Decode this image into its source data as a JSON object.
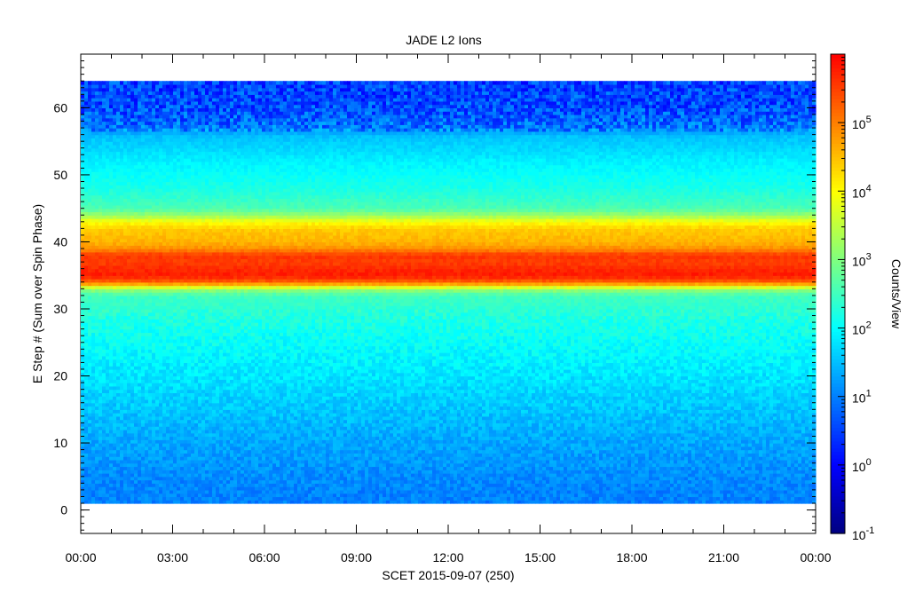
{
  "chart_data": {
    "type": "heatmap",
    "title": "JADE L2 Ions",
    "xlabel": "SCET 2015-09-07 (250)",
    "ylabel": "E Step # (Sum over Spin Phase)",
    "colorbar_label": "Counts/View",
    "x_tick_labels": [
      "00:00",
      "03:00",
      "06:00",
      "09:00",
      "12:00",
      "15:00",
      "18:00",
      "21:00",
      "00:00"
    ],
    "x_range_hours": [
      0,
      24
    ],
    "y_ticks": [
      0,
      10,
      20,
      30,
      40,
      50,
      60
    ],
    "y_range": [
      -3.5,
      68
    ],
    "data_y_range": [
      1,
      64
    ],
    "colorbar_ticks": [
      {
        "base": "10",
        "exp": "-1"
      },
      {
        "base": "10",
        "exp": "0"
      },
      {
        "base": "10",
        "exp": "1"
      },
      {
        "base": "10",
        "exp": "2"
      },
      {
        "base": "10",
        "exp": "3"
      },
      {
        "base": "10",
        "exp": "4"
      },
      {
        "base": "10",
        "exp": "5"
      }
    ],
    "colorbar_log_range": [
      -1,
      6
    ],
    "colorscale": [
      "#00007f",
      "#0000ff",
      "#007fff",
      "#00ffff",
      "#7fff7f",
      "#ffff00",
      "#ff7f00",
      "#ff0000"
    ],
    "energy_profile_log10": [
      {
        "e": 1,
        "v": 1.0
      },
      {
        "e": 5,
        "v": 1.1
      },
      {
        "e": 10,
        "v": 1.3
      },
      {
        "e": 20,
        "v": 1.8
      },
      {
        "e": 28,
        "v": 2.2
      },
      {
        "e": 32,
        "v": 2.5
      },
      {
        "e": 33,
        "v": 3.2
      },
      {
        "e": 34,
        "v": 5.2
      },
      {
        "e": 35,
        "v": 5.8
      },
      {
        "e": 36,
        "v": 5.7
      },
      {
        "e": 37,
        "v": 5.5
      },
      {
        "e": 38,
        "v": 5.6
      },
      {
        "e": 39,
        "v": 4.9
      },
      {
        "e": 40,
        "v": 4.6
      },
      {
        "e": 41,
        "v": 4.5
      },
      {
        "e": 42,
        "v": 4.4
      },
      {
        "e": 43,
        "v": 4.0
      },
      {
        "e": 44,
        "v": 3.2
      },
      {
        "e": 45,
        "v": 2.6
      },
      {
        "e": 48,
        "v": 2.2
      },
      {
        "e": 52,
        "v": 1.9
      },
      {
        "e": 56,
        "v": 1.5
      },
      {
        "e": 57,
        "v": 0.9
      },
      {
        "e": 60,
        "v": 0.6
      },
      {
        "e": 64,
        "v": 0.5
      }
    ]
  }
}
